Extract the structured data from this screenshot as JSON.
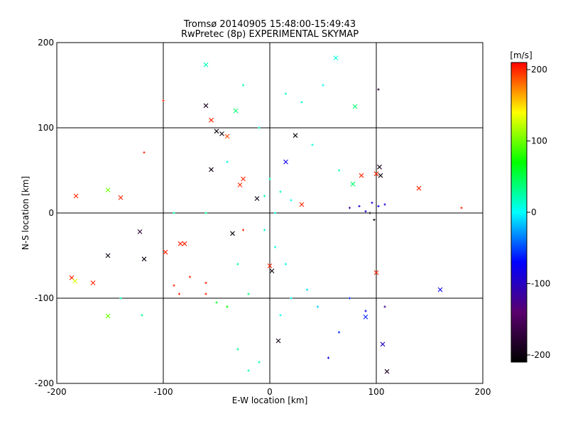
{
  "chart_data": {
    "type": "scatter",
    "title": "Tromsø 20140905 15:48:00-15:49:43",
    "subtitle": "RwPretec (8p) EXPERIMENTAL SKYMAP",
    "xlabel": "E-W location [km]",
    "ylabel": "N-S location [km]",
    "xlim": [
      -200,
      200
    ],
    "ylim": [
      -200,
      200
    ],
    "x_ticks": [
      "-200",
      "-100",
      "0",
      "100",
      "200"
    ],
    "y_ticks": [
      "-200",
      "-100",
      "0",
      "100",
      "200"
    ],
    "grid": "on",
    "colorbar": {
      "unit": "[m/s]",
      "range": [
        -210,
        210
      ],
      "ticks": [
        "200",
        "100",
        "0",
        "-100",
        "-200"
      ],
      "colormap": [
        "#000000",
        "#5a006e",
        "#0000ff",
        "#00ffff",
        "#00ff00",
        "#ffff00",
        "#ff0000"
      ]
    },
    "markers": {
      "large": "x",
      "small": "+"
    },
    "points": [
      {
        "x": -60,
        "y": 174,
        "v": 20,
        "m": "x"
      },
      {
        "x": 62,
        "y": 182,
        "v": 10,
        "m": "x"
      },
      {
        "x": -100,
        "y": 132,
        "v": 200,
        "m": "+"
      },
      {
        "x": -60,
        "y": 126,
        "v": -190,
        "m": "x"
      },
      {
        "x": -32,
        "y": 120,
        "v": 40,
        "m": "x"
      },
      {
        "x": 80,
        "y": 125,
        "v": 40,
        "m": "x"
      },
      {
        "x": 102,
        "y": 145,
        "v": -180,
        "m": "+"
      },
      {
        "x": -55,
        "y": 109,
        "v": 200,
        "m": "x"
      },
      {
        "x": -50,
        "y": 96,
        "v": -200,
        "m": "x"
      },
      {
        "x": -45,
        "y": 93,
        "v": -200,
        "m": "x"
      },
      {
        "x": -40,
        "y": 90,
        "v": 190,
        "m": "x"
      },
      {
        "x": 24,
        "y": 91,
        "v": -200,
        "m": "x"
      },
      {
        "x": -118,
        "y": 71,
        "v": 200,
        "m": "+"
      },
      {
        "x": -55,
        "y": 51,
        "v": -200,
        "m": "x"
      },
      {
        "x": -25,
        "y": 40,
        "v": 200,
        "m": "x"
      },
      {
        "x": -28,
        "y": 33,
        "v": 200,
        "m": "x"
      },
      {
        "x": 86,
        "y": 44,
        "v": 200,
        "m": "x"
      },
      {
        "x": 100,
        "y": 46,
        "v": 200,
        "m": "x"
      },
      {
        "x": 104,
        "y": 44,
        "v": -200,
        "m": "x"
      },
      {
        "x": 103,
        "y": 54,
        "v": -200,
        "m": "x"
      },
      {
        "x": 140,
        "y": 29,
        "v": 200,
        "m": "x"
      },
      {
        "x": 78,
        "y": 34,
        "v": 40,
        "m": "x"
      },
      {
        "x": -182,
        "y": 20,
        "v": 200,
        "m": "x"
      },
      {
        "x": -152,
        "y": 27,
        "v": 100,
        "m": "x"
      },
      {
        "x": -140,
        "y": 18,
        "v": 200,
        "m": "x"
      },
      {
        "x": -12,
        "y": 17,
        "v": -200,
        "m": "x"
      },
      {
        "x": 30,
        "y": 10,
        "v": 200,
        "m": "x"
      },
      {
        "x": 15,
        "y": 60,
        "v": -80,
        "m": "x"
      },
      {
        "x": 180,
        "y": 6,
        "v": 200,
        "m": "+"
      },
      {
        "x": -122,
        "y": -22,
        "v": -180,
        "m": "x"
      },
      {
        "x": -35,
        "y": -24,
        "v": -200,
        "m": "x"
      },
      {
        "x": -152,
        "y": -50,
        "v": -200,
        "m": "x"
      },
      {
        "x": -118,
        "y": -54,
        "v": -200,
        "m": "x"
      },
      {
        "x": -98,
        "y": -46,
        "v": 200,
        "m": "x"
      },
      {
        "x": -84,
        "y": -36,
        "v": 200,
        "m": "x"
      },
      {
        "x": -80,
        "y": -36,
        "v": 200,
        "m": "x"
      },
      {
        "x": -186,
        "y": -76,
        "v": 200,
        "m": "x"
      },
      {
        "x": -183,
        "y": -80,
        "v": 130,
        "m": "x"
      },
      {
        "x": -166,
        "y": -82,
        "v": 200,
        "m": "x"
      },
      {
        "x": -152,
        "y": -121,
        "v": 100,
        "m": "x"
      },
      {
        "x": 0,
        "y": -62,
        "v": 200,
        "m": "x"
      },
      {
        "x": 2,
        "y": -68,
        "v": -200,
        "m": "x"
      },
      {
        "x": 8,
        "y": -150,
        "v": -200,
        "m": "x"
      },
      {
        "x": 90,
        "y": -122,
        "v": -60,
        "m": "x"
      },
      {
        "x": 106,
        "y": -154,
        "v": -100,
        "m": "x"
      },
      {
        "x": 100,
        "y": -70,
        "v": 200,
        "m": "x"
      },
      {
        "x": 160,
        "y": -90,
        "v": -80,
        "m": "x"
      },
      {
        "x": 110,
        "y": -186,
        "v": -190,
        "m": "x"
      },
      {
        "x": -25,
        "y": -20,
        "v": 200,
        "m": "+"
      },
      {
        "x": -85,
        "y": -95,
        "v": 200,
        "m": "+"
      },
      {
        "x": -75,
        "y": -75,
        "v": 200,
        "m": "+"
      },
      {
        "x": -90,
        "y": -85,
        "v": 200,
        "m": "+"
      },
      {
        "x": -60,
        "y": -95,
        "v": 200,
        "m": "+"
      },
      {
        "x": -60,
        "y": -82,
        "v": 200,
        "m": "+"
      },
      {
        "x": 75,
        "y": 6,
        "v": -120,
        "m": "+"
      },
      {
        "x": 84,
        "y": 8,
        "v": -100,
        "m": "+"
      },
      {
        "x": 90,
        "y": 2,
        "v": -100,
        "m": "+"
      },
      {
        "x": 96,
        "y": 12,
        "v": -90,
        "m": "+"
      },
      {
        "x": 94,
        "y": 0,
        "v": -200,
        "m": "+"
      },
      {
        "x": 108,
        "y": 10,
        "v": -90,
        "m": "+"
      },
      {
        "x": 102,
        "y": 8,
        "v": -80,
        "m": "+"
      },
      {
        "x": 98,
        "y": -8,
        "v": -200,
        "m": "+"
      },
      {
        "x": 75,
        "y": -100,
        "v": -60,
        "m": "+"
      },
      {
        "x": 65,
        "y": -140,
        "v": -60,
        "m": "+"
      },
      {
        "x": 55,
        "y": -170,
        "v": -80,
        "m": "+"
      },
      {
        "x": 108,
        "y": -110,
        "v": -120,
        "m": "+"
      },
      {
        "x": 90,
        "y": -115,
        "v": -80,
        "m": "+"
      },
      {
        "x": -140,
        "y": -100,
        "v": 20,
        "m": "+"
      },
      {
        "x": -120,
        "y": -120,
        "v": 30,
        "m": "+"
      },
      {
        "x": 15,
        "y": 140,
        "v": 15,
        "m": "+"
      },
      {
        "x": -25,
        "y": 150,
        "v": 20,
        "m": "+"
      },
      {
        "x": 30,
        "y": 130,
        "v": 10,
        "m": "+"
      },
      {
        "x": 50,
        "y": 150,
        "v": 5,
        "m": "+"
      },
      {
        "x": -40,
        "y": 60,
        "v": 10,
        "m": "+"
      },
      {
        "x": -10,
        "y": 100,
        "v": 15,
        "m": "+"
      },
      {
        "x": 40,
        "y": 80,
        "v": 10,
        "m": "+"
      },
      {
        "x": 65,
        "y": 50,
        "v": 20,
        "m": "+"
      },
      {
        "x": -90,
        "y": 0,
        "v": 20,
        "m": "+"
      },
      {
        "x": -60,
        "y": 0,
        "v": 30,
        "m": "+"
      },
      {
        "x": -30,
        "y": -60,
        "v": 30,
        "m": "+"
      },
      {
        "x": -20,
        "y": -95,
        "v": 40,
        "m": "+"
      },
      {
        "x": -40,
        "y": -110,
        "v": 70,
        "m": "+"
      },
      {
        "x": -50,
        "y": -105,
        "v": 60,
        "m": "+"
      },
      {
        "x": -30,
        "y": -160,
        "v": 30,
        "m": "+"
      },
      {
        "x": -20,
        "y": -185,
        "v": 20,
        "m": "+"
      },
      {
        "x": -10,
        "y": -175,
        "v": 25,
        "m": "+"
      },
      {
        "x": 10,
        "y": -120,
        "v": 5,
        "m": "+"
      },
      {
        "x": 20,
        "y": -100,
        "v": 0,
        "m": "+"
      },
      {
        "x": 35,
        "y": -90,
        "v": -10,
        "m": "+"
      },
      {
        "x": 45,
        "y": -110,
        "v": -15,
        "m": "+"
      },
      {
        "x": 5,
        "y": -40,
        "v": 10,
        "m": "+"
      },
      {
        "x": -5,
        "y": -20,
        "v": 15,
        "m": "+"
      },
      {
        "x": 5,
        "y": 0,
        "v": 10,
        "m": "+"
      },
      {
        "x": -5,
        "y": 20,
        "v": 20,
        "m": "+"
      },
      {
        "x": 10,
        "y": 25,
        "v": 15,
        "m": "+"
      },
      {
        "x": 20,
        "y": 15,
        "v": 5,
        "m": "+"
      },
      {
        "x": 0,
        "y": 40,
        "v": 25,
        "m": "+"
      },
      {
        "x": 15,
        "y": -60,
        "v": 5,
        "m": "+"
      }
    ]
  }
}
